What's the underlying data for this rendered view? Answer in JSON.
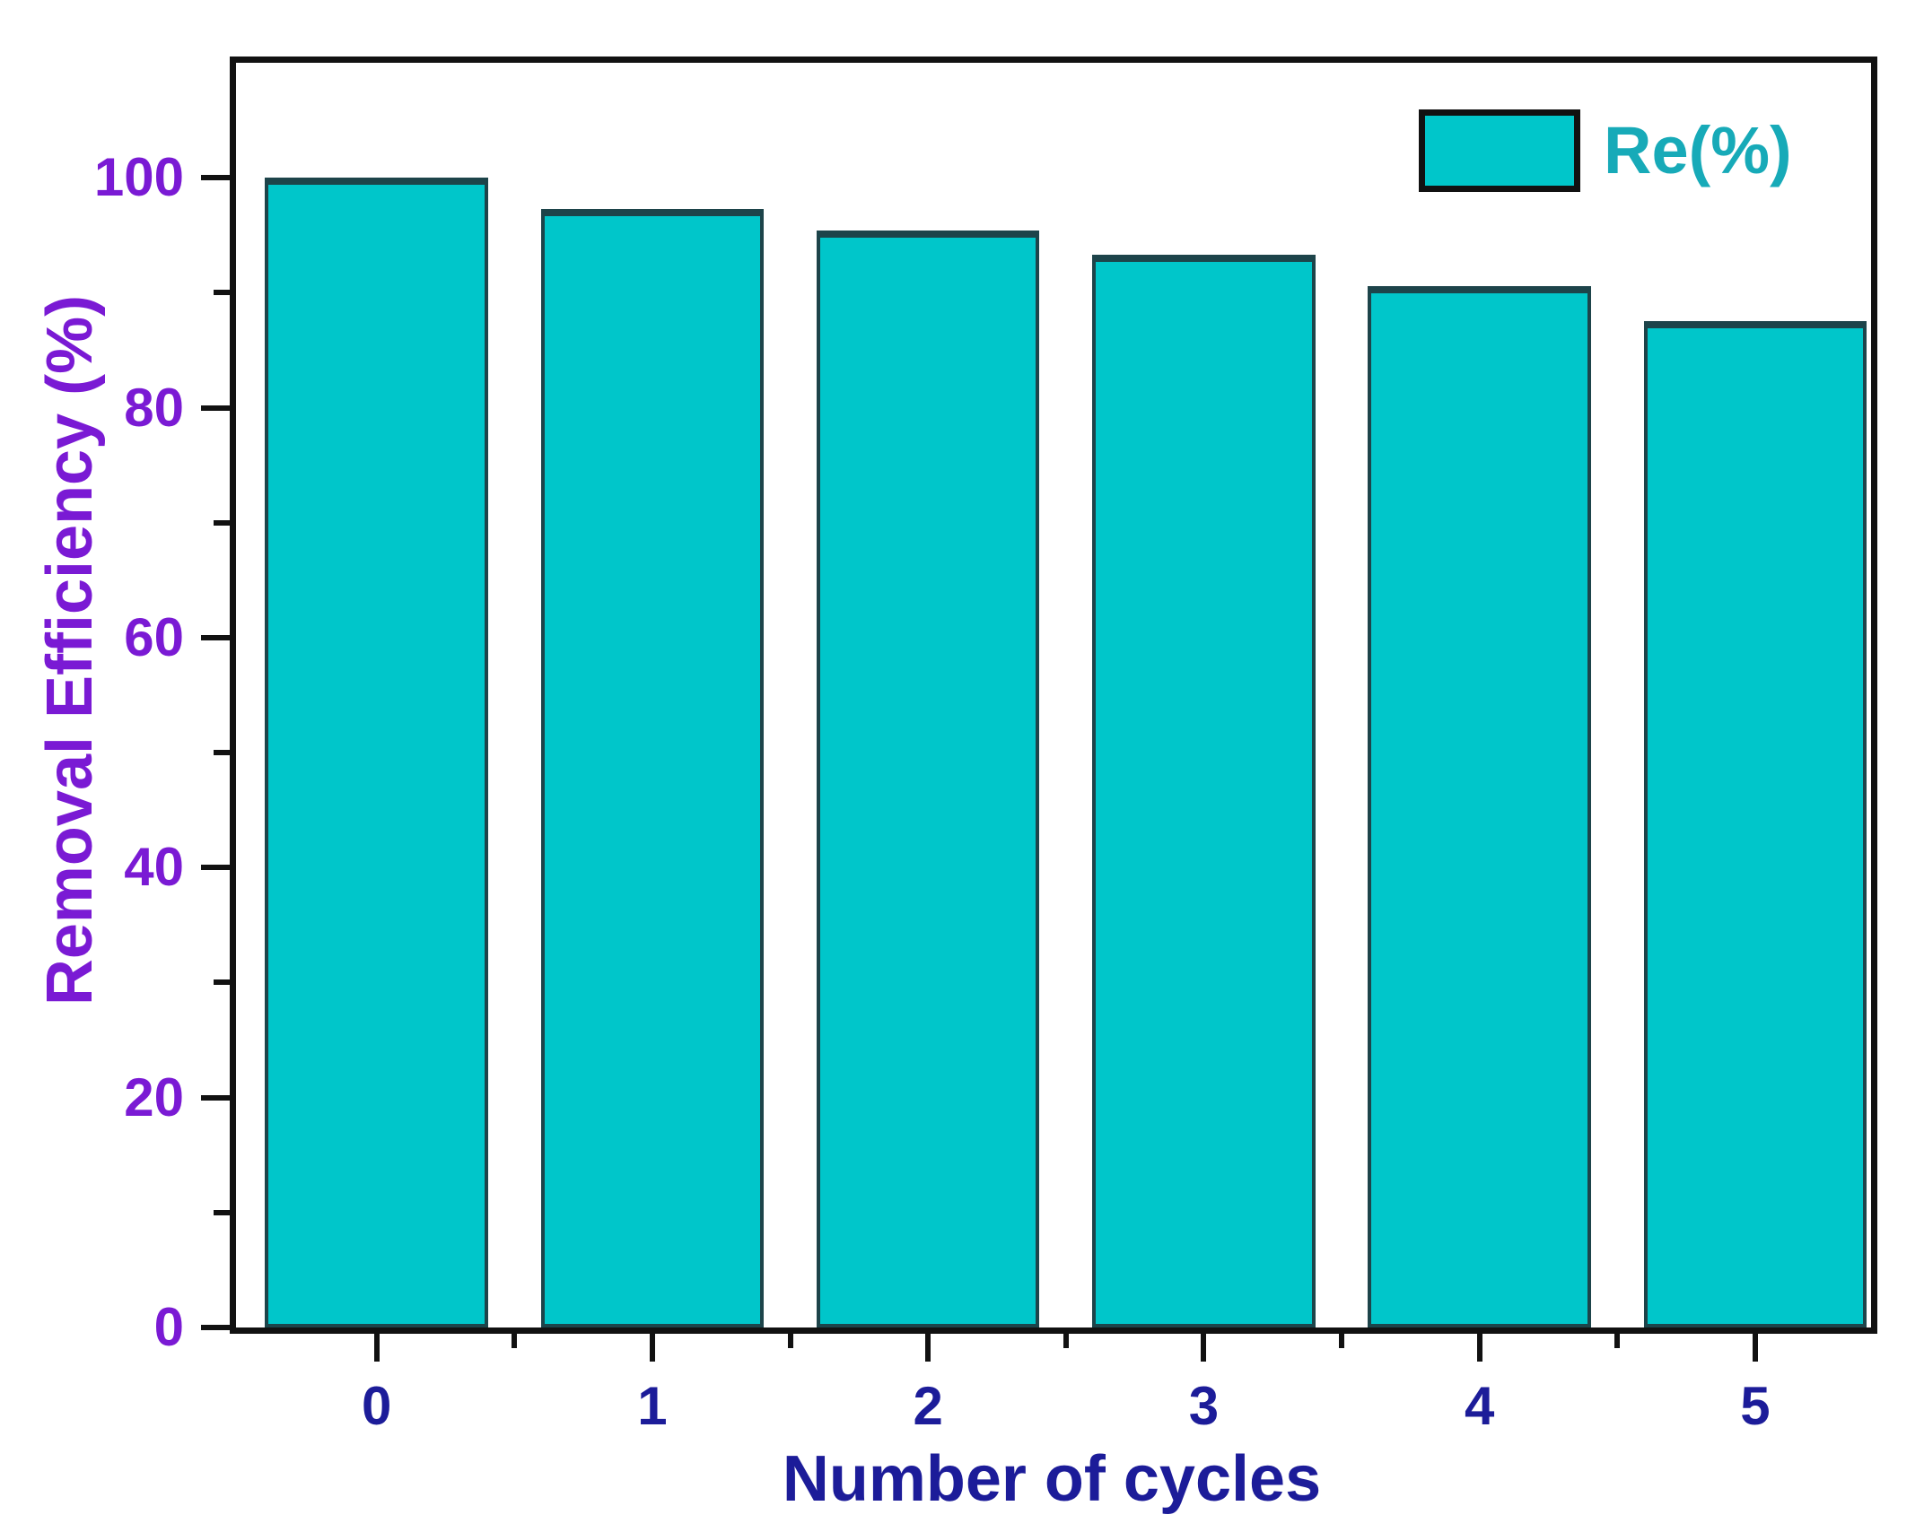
{
  "chart_data": {
    "type": "bar",
    "title": "",
    "xlabel": "Number of cycles",
    "ylabel": "Removal Efficiency (%)",
    "categories": [
      "0",
      "1",
      "2",
      "3",
      "4",
      "5"
    ],
    "series": [
      {
        "name": "Re(%)",
        "values": [
          100,
          97.3,
          95.4,
          93.3,
          90.6,
          87.5
        ]
      }
    ],
    "ylim": [
      0,
      110
    ],
    "y_major_ticks": [
      0,
      20,
      40,
      60,
      80,
      100
    ],
    "y_minor_ticks": [
      10,
      30,
      50,
      70,
      90
    ],
    "x_major_positions": [
      0,
      1,
      2,
      3,
      4,
      5
    ],
    "x_minor_positions": [
      0.5,
      1.5,
      2.5,
      3.5,
      4.5
    ],
    "xlim": [
      -0.51,
      5.42
    ],
    "bar_width_units": 0.809,
    "grid": false,
    "legend": {
      "position": "top-right",
      "entries": [
        {
          "label": "Re(%)",
          "color": "#00c6ca"
        }
      ]
    },
    "colors": {
      "bar_fill": "#00c6ca",
      "bar_edge": "#1d444a",
      "axis_frame": "#111111",
      "y_text": "#7a1ad4",
      "x_text": "#1c1c99",
      "legend_text": "#17aab8"
    }
  }
}
